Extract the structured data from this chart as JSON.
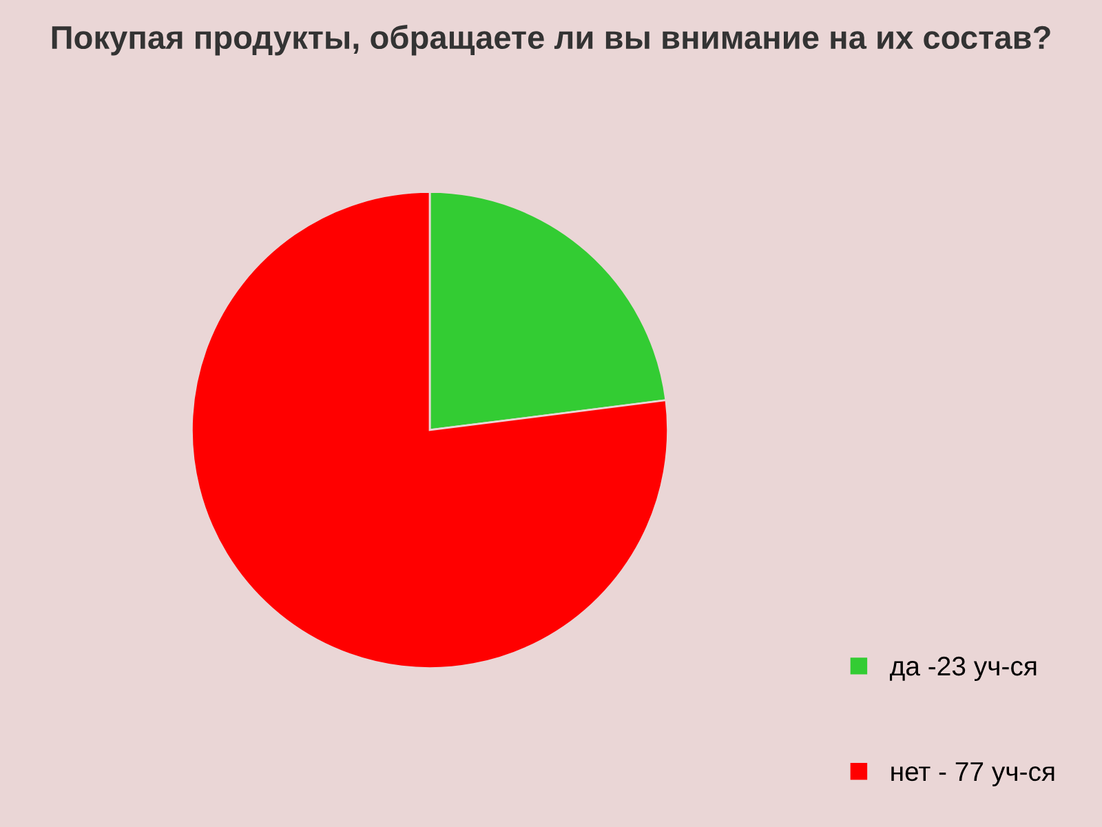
{
  "chart_data": {
    "type": "pie",
    "title": "Покупая продукты, обращаете ли вы внимание на их состав?",
    "categories": [
      "да -23 уч-ся",
      "нет - 77 уч-ся"
    ],
    "values": [
      23,
      77
    ],
    "colors": [
      "#33cc33",
      "#ff0000"
    ],
    "legend": "bottom right"
  }
}
